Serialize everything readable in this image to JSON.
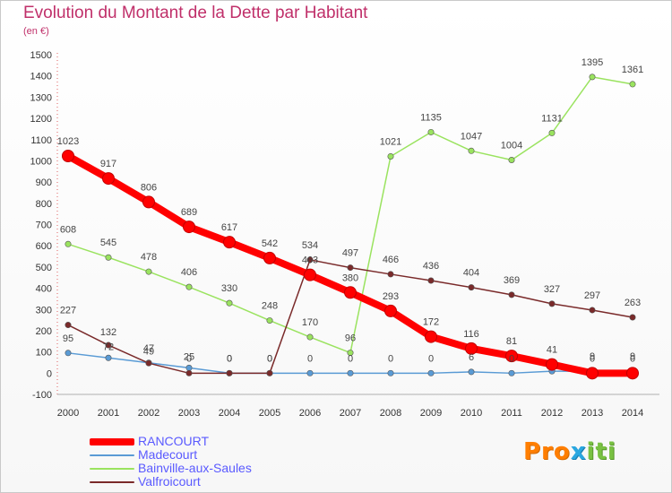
{
  "header": {
    "title": "Evolution du Montant de la Dette par Habitant",
    "unit": "(en €)"
  },
  "logo": {
    "text": "Proxiti",
    "part1": "Pro",
    "part2": "x",
    "part3": "iti"
  },
  "colors": {
    "title": "#c0306a",
    "rancourt": "#ff0000",
    "madecourt": "#5a9bd5",
    "bainville": "#9ae35f",
    "valfroicourt": "#7a2a2a",
    "axis_labels": "#333333",
    "legend_text": "#5a5aff"
  },
  "chart_data": {
    "type": "line",
    "title": "Evolution du Montant de la Dette par Habitant",
    "ylabel": "(en €)",
    "xlabel": "",
    "ylim": [
      -100,
      1500
    ],
    "y_ticks": [
      -100,
      0,
      100,
      200,
      300,
      400,
      500,
      600,
      700,
      800,
      900,
      1000,
      1100,
      1200,
      1300,
      1400,
      1500
    ],
    "grid": false,
    "legend_position": "bottom-left",
    "x": [
      2000,
      2001,
      2002,
      2003,
      2004,
      2005,
      2006,
      2007,
      2008,
      2009,
      2010,
      2011,
      2012,
      2013,
      2014
    ],
    "series": [
      {
        "name": "RANCOURT",
        "color": "#ff0000",
        "values": [
          1023,
          917,
          806,
          689,
          617,
          542,
          463,
          380,
          293,
          172,
          116,
          81,
          41,
          0,
          0
        ],
        "labels": [
          "1023",
          "917",
          "806",
          "689",
          "617",
          "542",
          "463",
          "380",
          "293",
          "172",
          "116",
          "81",
          "41",
          "0",
          "0"
        ]
      },
      {
        "name": "Madecourt",
        "color": "#5a9bd5",
        "values": [
          95,
          72,
          49,
          25,
          0,
          0,
          0,
          0,
          0,
          0,
          6,
          0,
          9,
          9,
          9
        ],
        "labels": [
          "95",
          "72",
          "49",
          "25",
          "0",
          "0",
          "0",
          "0",
          "0",
          "0",
          "6",
          "0",
          "",
          "9",
          "9"
        ]
      },
      {
        "name": "Bainville-aux-Saules",
        "color": "#9ae35f",
        "values": [
          608,
          545,
          478,
          406,
          330,
          248,
          170,
          96,
          1021,
          1135,
          1047,
          1004,
          1131,
          1395,
          1361
        ],
        "labels": [
          "608",
          "545",
          "478",
          "406",
          "330",
          "248",
          "170",
          "96",
          "1021",
          "1135",
          "1047",
          "1004",
          "1131",
          "1395",
          "1361"
        ]
      },
      {
        "name": "Valfroicourt",
        "color": "#7a2a2a",
        "values": [
          227,
          132,
          47,
          0,
          0,
          0,
          534,
          497,
          466,
          436,
          404,
          369,
          327,
          297,
          263
        ],
        "labels": [
          "227",
          "132",
          "47",
          "0",
          "0",
          "0",
          "534",
          "497",
          "466",
          "436",
          "404",
          "369",
          "327",
          "297",
          "263"
        ]
      }
    ]
  }
}
